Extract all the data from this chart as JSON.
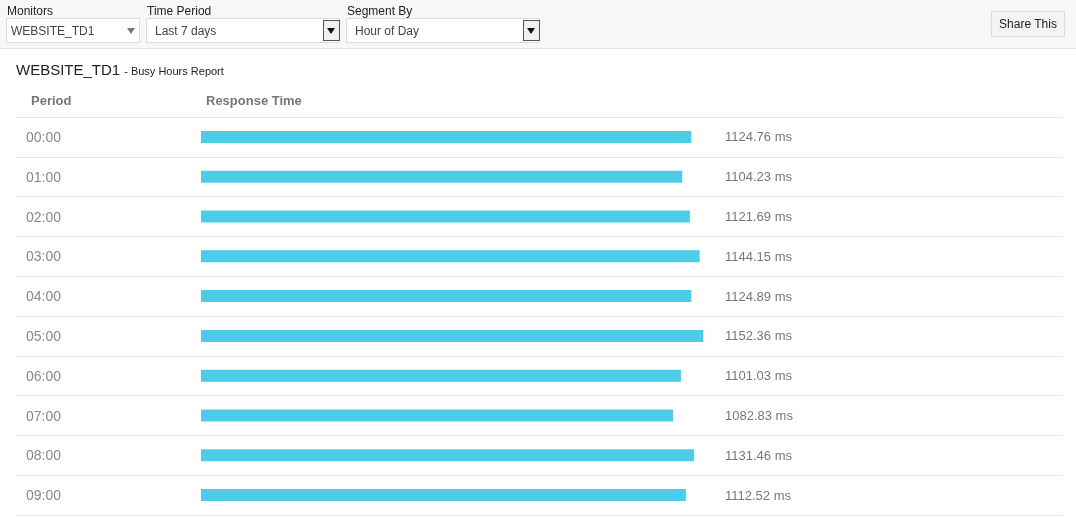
{
  "chart_data": {
    "type": "bar",
    "orientation": "horizontal",
    "title": "WEBSITE_TD1",
    "subtitle": "- Busy Hours Report",
    "xlabel": "Response Time",
    "ylabel": "Period",
    "categories": [
      "00:00",
      "01:00",
      "02:00",
      "03:00",
      "04:00",
      "05:00",
      "06:00",
      "07:00",
      "08:00",
      "09:00"
    ],
    "values": [
      1124.76,
      1104.23,
      1121.69,
      1144.15,
      1124.89,
      1152.36,
      1101.03,
      1082.83,
      1131.46,
      1112.52
    ],
    "value_labels": [
      "1124.76 ms",
      "1104.23 ms",
      "1121.69 ms",
      "1144.15 ms",
      "1124.89 ms",
      "1152.36 ms",
      "1101.03 ms",
      "1082.83 ms",
      "1131.46 ms",
      "1112.52 ms"
    ],
    "color": "#4ccce6",
    "grid": "y",
    "tick_labels": "y",
    "annotations": [
      "Monitors",
      "WEBSITE_TD1",
      "Time Period",
      "Last 7 days",
      "Segment By",
      "Hour of Day",
      "Share This"
    ]
  }
}
